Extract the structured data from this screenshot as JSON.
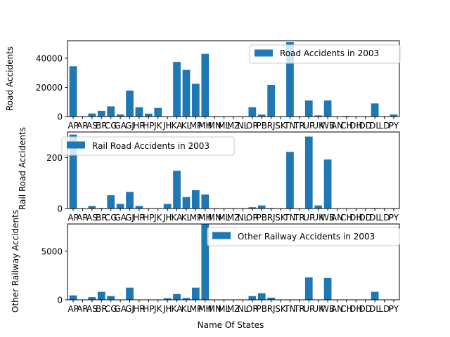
{
  "chart_data": [
    {
      "type": "bar",
      "categories": [
        "AP",
        "AR",
        "AS",
        "BR",
        "CG",
        "GA",
        "GJ",
        "HR",
        "HP",
        "JK",
        "JH",
        "KA",
        "KL",
        "MP",
        "MH",
        "MN",
        "ML",
        "MZ",
        "NL",
        "OR",
        "PB",
        "RJ",
        "SK",
        "TN",
        "TR",
        "UP",
        "UK",
        "WB",
        "AN",
        "CH",
        "DH",
        "DD",
        "DL",
        "LD",
        "PY"
      ],
      "values": [
        34500,
        0,
        2100,
        3900,
        7000,
        1400,
        17800,
        6400,
        2000,
        5900,
        200,
        37500,
        32000,
        22500,
        43000,
        300,
        0,
        0,
        0,
        6400,
        1300,
        21700,
        0,
        51000,
        300,
        11000,
        800,
        11000,
        0,
        400,
        0,
        0,
        9000,
        0,
        1400
      ],
      "series_name": "Road Accidents in 2003",
      "ylabel": "Road Accidents",
      "ylim": [
        0,
        52000
      ],
      "yticks": [
        0,
        20000,
        40000
      ],
      "legend": "upper right",
      "color": "#1f77b4"
    },
    {
      "type": "bar",
      "categories": [
        "AP",
        "AR",
        "AS",
        "BR",
        "CG",
        "GA",
        "GJ",
        "HR",
        "HP",
        "JK",
        "JH",
        "KA",
        "KL",
        "MP",
        "MH",
        "MN",
        "ML",
        "MZ",
        "NL",
        "OR",
        "PB",
        "RJ",
        "SK",
        "TN",
        "TR",
        "UP",
        "UK",
        "WB",
        "AN",
        "CH",
        "DH",
        "DD",
        "DL",
        "LD",
        "PY"
      ],
      "values": [
        290,
        0,
        10,
        2,
        52,
        18,
        65,
        10,
        0,
        0,
        18,
        148,
        45,
        72,
        55,
        0,
        0,
        0,
        0,
        5,
        12,
        2,
        0,
        222,
        0,
        282,
        12,
        192,
        0,
        0,
        0,
        0,
        2,
        0,
        0
      ],
      "series_name": "Rail Road Accidents in 2003",
      "ylabel": "Rail Road Accidents",
      "ylim": [
        0,
        300
      ],
      "yticks": [
        0,
        200
      ],
      "legend": "upper left",
      "color": "#1f77b4"
    },
    {
      "type": "bar",
      "categories": [
        "AP",
        "AR",
        "AS",
        "BR",
        "CG",
        "GA",
        "GJ",
        "HR",
        "HP",
        "JK",
        "JH",
        "KA",
        "KL",
        "MP",
        "MH",
        "MN",
        "ML",
        "MZ",
        "NL",
        "OR",
        "PB",
        "RJ",
        "SK",
        "TN",
        "TR",
        "UP",
        "UK",
        "WB",
        "AN",
        "CH",
        "DH",
        "DD",
        "DL",
        "LD",
        "PY"
      ],
      "values": [
        450,
        0,
        280,
        820,
        380,
        0,
        1250,
        0,
        0,
        0,
        160,
        600,
        180,
        1250,
        7800,
        0,
        0,
        0,
        0,
        380,
        680,
        220,
        0,
        0,
        0,
        2300,
        0,
        2250,
        0,
        0,
        0,
        0,
        820,
        0,
        0
      ],
      "series_name": "Other Railway Accidents in 2003",
      "ylabel": "Other Railway  Accidents",
      "xlabel": "Name Of States",
      "ylim": [
        0,
        7800
      ],
      "yticks": [
        0,
        5000
      ],
      "legend": "upper right",
      "color": "#1f77b4"
    }
  ]
}
